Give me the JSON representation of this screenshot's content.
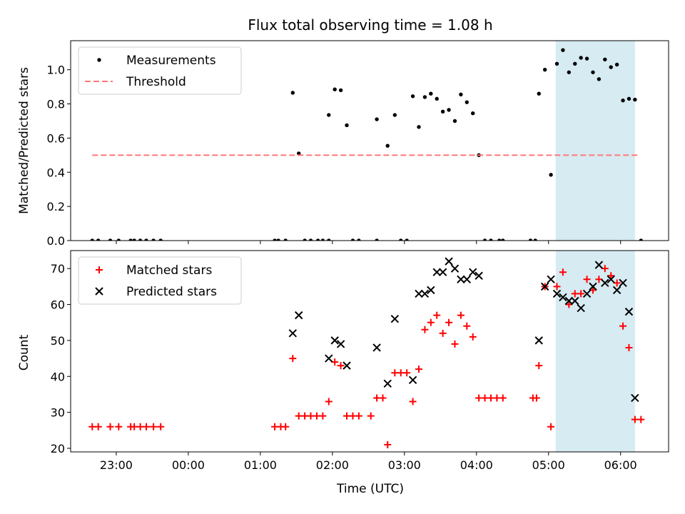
{
  "chart_data": [
    {
      "type": "scatter",
      "title": "Flux total observing time = 1.08 h",
      "ylabel": "Matched/Predicted stars",
      "ylim": [
        0,
        1.17
      ],
      "yticks": [
        "0.0",
        "0.2",
        "0.4",
        "0.6",
        "0.8",
        "1.0"
      ],
      "ytick_values": [
        0,
        0.2,
        0.4,
        0.6,
        0.8,
        1.0
      ],
      "legend_position": "top-left",
      "highlight_span": [
        "05:06",
        "06:12"
      ],
      "series": [
        {
          "name": "Measurements",
          "marker": "dot",
          "color": "#000000",
          "points": [
            [
              "22:40",
              0
            ],
            [
              "22:45",
              0
            ],
            [
              "22:55",
              0
            ],
            [
              "23:02",
              0
            ],
            [
              "23:12",
              0
            ],
            [
              "23:15",
              0
            ],
            [
              "23:20",
              0
            ],
            [
              "23:25",
              0
            ],
            [
              "23:31",
              0
            ],
            [
              "23:37",
              0
            ],
            [
              "01:12",
              0
            ],
            [
              "01:15",
              0
            ],
            [
              "01:21",
              0
            ],
            [
              "01:27",
              0.865
            ],
            [
              "01:32",
              0.51
            ],
            [
              "01:37",
              0
            ],
            [
              "01:42",
              0
            ],
            [
              "01:48",
              0
            ],
            [
              "01:52",
              0
            ],
            [
              "01:57",
              0
            ],
            [
              "01:57",
              0.735
            ],
            [
              "02:02",
              0.885
            ],
            [
              "02:07",
              0.88
            ],
            [
              "02:12",
              0.675
            ],
            [
              "02:17",
              0
            ],
            [
              "02:22",
              0
            ],
            [
              "02:37",
              0.71
            ],
            [
              "02:37",
              0
            ],
            [
              "02:46",
              0.555
            ],
            [
              "02:52",
              0.735
            ],
            [
              "02:57",
              0
            ],
            [
              "03:02",
              0
            ],
            [
              "03:07",
              0.845
            ],
            [
              "03:12",
              0.665
            ],
            [
              "03:17",
              0.84
            ],
            [
              "03:22",
              0.86
            ],
            [
              "03:27",
              0.83
            ],
            [
              "03:32",
              0.755
            ],
            [
              "03:37",
              0.765
            ],
            [
              "03:42",
              0.7
            ],
            [
              "03:47",
              0.855
            ],
            [
              "03:52",
              0.81
            ],
            [
              "03:57",
              0.745
            ],
            [
              "04:02",
              0.5
            ],
            [
              "04:07",
              0
            ],
            [
              "04:12",
              0
            ],
            [
              "04:19",
              0
            ],
            [
              "04:22",
              0
            ],
            [
              "04:45",
              0
            ],
            [
              "04:49",
              0
            ],
            [
              "04:52",
              0.86
            ],
            [
              "04:57",
              1.0
            ],
            [
              "05:02",
              0.385
            ],
            [
              "05:07",
              1.035
            ],
            [
              "05:12",
              1.115
            ],
            [
              "05:17",
              0.985
            ],
            [
              "05:22",
              1.035
            ],
            [
              "05:27",
              1.07
            ],
            [
              "05:32",
              1.065
            ],
            [
              "05:37",
              0.985
            ],
            [
              "05:42",
              0.945
            ],
            [
              "05:47",
              1.06
            ],
            [
              "05:52",
              1.015
            ],
            [
              "05:57",
              1.03
            ],
            [
              "06:02",
              0.82
            ],
            [
              "06:07",
              0.83
            ],
            [
              "06:12",
              0.825
            ],
            [
              "06:17",
              0
            ]
          ]
        },
        {
          "name": "Threshold",
          "marker": "dashed-line",
          "color": "#ff7777",
          "points": [
            [
              "22:40",
              0.5
            ],
            [
              "06:15",
              0.5
            ]
          ]
        }
      ]
    },
    {
      "type": "scatter",
      "xlabel": "Time (UTC)",
      "ylabel": "Count",
      "ylim": [
        19,
        75
      ],
      "yticks": [
        "20",
        "30",
        "40",
        "50",
        "60",
        "70"
      ],
      "ytick_values": [
        20,
        30,
        40,
        50,
        60,
        70
      ],
      "xticks": [
        "23:00",
        "00:00",
        "01:00",
        "02:00",
        "03:00",
        "04:00",
        "05:00",
        "06:00"
      ],
      "xlim": [
        "22:22",
        "06:40"
      ],
      "legend_position": "top-left",
      "highlight_span": [
        "05:06",
        "06:12"
      ],
      "series": [
        {
          "name": "Matched stars",
          "marker": "plus",
          "color": "#ff0000",
          "points": [
            [
              "22:40",
              26
            ],
            [
              "22:45",
              26
            ],
            [
              "22:55",
              26
            ],
            [
              "23:02",
              26
            ],
            [
              "23:12",
              26
            ],
            [
              "23:15",
              26
            ],
            [
              "23:20",
              26
            ],
            [
              "23:25",
              26
            ],
            [
              "23:31",
              26
            ],
            [
              "23:37",
              26
            ],
            [
              "01:12",
              26
            ],
            [
              "01:17",
              26
            ],
            [
              "01:21",
              26
            ],
            [
              "01:27",
              45
            ],
            [
              "01:32",
              29
            ],
            [
              "01:37",
              29
            ],
            [
              "01:42",
              29
            ],
            [
              "01:47",
              29
            ],
            [
              "01:52",
              29
            ],
            [
              "01:57",
              33
            ],
            [
              "02:02",
              44
            ],
            [
              "02:07",
              43
            ],
            [
              "02:12",
              29
            ],
            [
              "02:17",
              29
            ],
            [
              "02:22",
              29
            ],
            [
              "02:32",
              29
            ],
            [
              "02:37",
              34
            ],
            [
              "02:42",
              34
            ],
            [
              "02:46",
              21
            ],
            [
              "02:52",
              41
            ],
            [
              "02:57",
              41
            ],
            [
              "03:02",
              41
            ],
            [
              "03:07",
              33
            ],
            [
              "03:12",
              42
            ],
            [
              "03:17",
              53
            ],
            [
              "03:22",
              55
            ],
            [
              "03:27",
              57
            ],
            [
              "03:32",
              52
            ],
            [
              "03:37",
              55
            ],
            [
              "03:42",
              49
            ],
            [
              "03:47",
              57
            ],
            [
              "03:52",
              54
            ],
            [
              "03:57",
              51
            ],
            [
              "04:02",
              34
            ],
            [
              "04:07",
              34
            ],
            [
              "04:12",
              34
            ],
            [
              "04:17",
              34
            ],
            [
              "04:22",
              34
            ],
            [
              "04:47",
              34
            ],
            [
              "04:50",
              34
            ],
            [
              "04:52",
              43
            ],
            [
              "04:57",
              65
            ],
            [
              "05:02",
              26
            ],
            [
              "05:07",
              65
            ],
            [
              "05:12",
              69
            ],
            [
              "05:17",
              60
            ],
            [
              "05:22",
              63
            ],
            [
              "05:27",
              63
            ],
            [
              "05:32",
              67
            ],
            [
              "05:37",
              64
            ],
            [
              "05:42",
              67
            ],
            [
              "05:47",
              70
            ],
            [
              "05:52",
              68
            ],
            [
              "05:57",
              66
            ],
            [
              "06:02",
              54
            ],
            [
              "06:07",
              48
            ],
            [
              "06:12",
              28
            ],
            [
              "06:17",
              28
            ]
          ]
        },
        {
          "name": "Predicted stars",
          "marker": "x",
          "color": "#000000",
          "points": [
            [
              "01:27",
              52
            ],
            [
              "01:32",
              57
            ],
            [
              "01:57",
              45
            ],
            [
              "02:02",
              50
            ],
            [
              "02:07",
              49
            ],
            [
              "02:12",
              43
            ],
            [
              "02:37",
              48
            ],
            [
              "02:46",
              38
            ],
            [
              "02:52",
              56
            ],
            [
              "03:07",
              39
            ],
            [
              "03:12",
              63
            ],
            [
              "03:17",
              63
            ],
            [
              "03:22",
              64
            ],
            [
              "03:27",
              69
            ],
            [
              "03:32",
              69
            ],
            [
              "03:37",
              72
            ],
            [
              "03:42",
              70
            ],
            [
              "03:47",
              67
            ],
            [
              "03:52",
              67
            ],
            [
              "03:57",
              69
            ],
            [
              "04:02",
              68
            ],
            [
              "04:52",
              50
            ],
            [
              "04:57",
              65
            ],
            [
              "05:02",
              67
            ],
            [
              "05:07",
              63
            ],
            [
              "05:12",
              62
            ],
            [
              "05:17",
              61
            ],
            [
              "05:22",
              61
            ],
            [
              "05:27",
              59
            ],
            [
              "05:32",
              63
            ],
            [
              "05:37",
              65
            ],
            [
              "05:42",
              71
            ],
            [
              "05:47",
              66
            ],
            [
              "05:52",
              67
            ],
            [
              "05:57",
              64
            ],
            [
              "06:02",
              66
            ],
            [
              "06:07",
              58
            ],
            [
              "06:12",
              34
            ]
          ]
        }
      ]
    }
  ]
}
